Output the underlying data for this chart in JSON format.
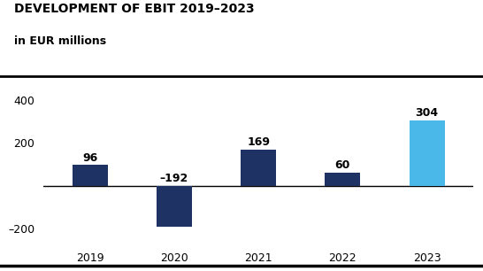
{
  "title_line1": "DEVELOPMENT OF EBIT 2019–2023",
  "title_line2": "in EUR millions",
  "categories": [
    "2019",
    "2020",
    "2021",
    "2022",
    "2023"
  ],
  "values": [
    96,
    -192,
    169,
    60,
    304
  ],
  "bar_colors": [
    "#1e3364",
    "#1e3364",
    "#1e3364",
    "#1e3364",
    "#4ab8e8"
  ],
  "bar_labels": [
    "96",
    "–192",
    "169",
    "60",
    "304"
  ],
  "ylim": [
    -270,
    460
  ],
  "yticks": [
    -200,
    0,
    200,
    400
  ],
  "yticklabels": [
    "–200",
    "",
    "200",
    "400"
  ],
  "title_fontsize": 10,
  "subtitle_fontsize": 9,
  "label_fontsize": 9,
  "tick_fontsize": 9,
  "background_color": "#ffffff",
  "bar_width": 0.42
}
